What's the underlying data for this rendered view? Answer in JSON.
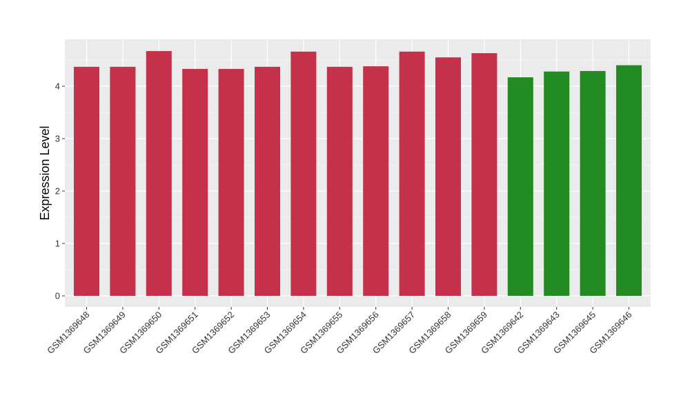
{
  "chart_data": {
    "type": "bar",
    "title": "",
    "xlabel": "",
    "ylabel": "Expression Level",
    "ylim": [
      0,
      4.9
    ],
    "yticks": [
      0,
      1,
      2,
      3,
      4
    ],
    "grid": true,
    "legend": "none",
    "background": "#EBEBEB",
    "gridline_color": "#FFFFFF",
    "categories": [
      "GSM1369648",
      "GSM1369649",
      "GSM1369650",
      "GSM1369651",
      "GSM1369652",
      "GSM1369653",
      "GSM1369654",
      "GSM1369655",
      "GSM1369656",
      "GSM1369657",
      "GSM1369658",
      "GSM1369659",
      "GSM1369642",
      "GSM1369643",
      "GSM1369645",
      "GSM1369646"
    ],
    "values": [
      4.37,
      4.37,
      4.67,
      4.33,
      4.33,
      4.37,
      4.66,
      4.37,
      4.38,
      4.66,
      4.55,
      4.63,
      4.17,
      4.28,
      4.29,
      4.4
    ],
    "colors": [
      "#C5304A",
      "#C5304A",
      "#C5304A",
      "#C5304A",
      "#C5304A",
      "#C5304A",
      "#C5304A",
      "#C5304A",
      "#C5304A",
      "#C5304A",
      "#C5304A",
      "#C5304A",
      "#228B22",
      "#228B22",
      "#228B22",
      "#228B22"
    ]
  }
}
